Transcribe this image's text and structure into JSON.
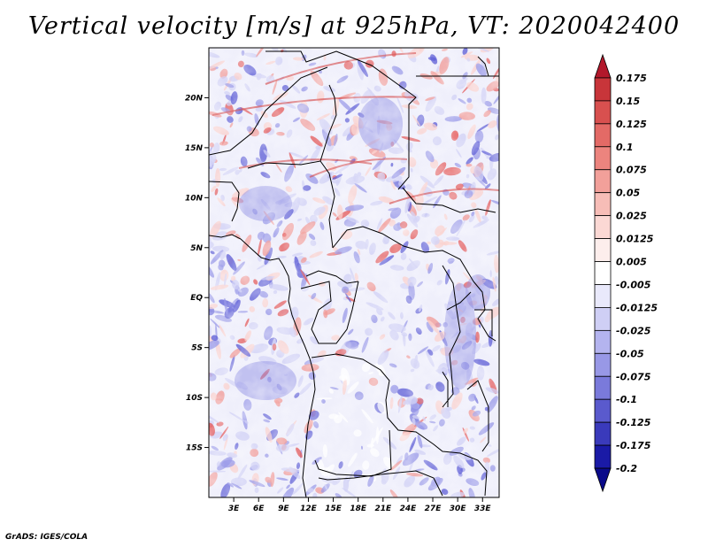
{
  "title": "Vertical velocity [m/s] at 925hPa, VT: 2020042400",
  "credit": "GrADS: IGES/COLA",
  "map": {
    "lon_labels": [
      "3E",
      "6E",
      "9E",
      "12E",
      "15E",
      "18E",
      "21E",
      "24E",
      "27E",
      "30E",
      "33E"
    ],
    "lat_labels": [
      "20N",
      "15N",
      "10N",
      "5N",
      "EQ",
      "5S",
      "10S",
      "15S"
    ],
    "lon_range": [
      0,
      35
    ],
    "lat_range": [
      -20,
      25
    ]
  },
  "colorbar": {
    "levels": [
      "0.175",
      "0.15",
      "0.125",
      "0.1",
      "0.075",
      "0.05",
      "0.025",
      "0.0125",
      "0.005",
      "-0.005",
      "-0.0125",
      "-0.025",
      "-0.05",
      "-0.075",
      "-0.1",
      "-0.125",
      "-0.175",
      "-0.2"
    ],
    "colors": [
      "#b2182b",
      "#c8353a",
      "#d8504f",
      "#e36a66",
      "#ec847e",
      "#f2a09a",
      "#f7bdb7",
      "#fbd8d4",
      "#fdeeec",
      "#ffffff",
      "#e9e9fb",
      "#cfcff5",
      "#b4b4ef",
      "#9898e6",
      "#7a7adb",
      "#5a5acd",
      "#3a3abb",
      "#1a1aa6",
      "#0a0a8a"
    ]
  },
  "colors": {
    "positive": "#d83a3a",
    "negative": "#4848d8",
    "neutral": "#ffffff"
  }
}
